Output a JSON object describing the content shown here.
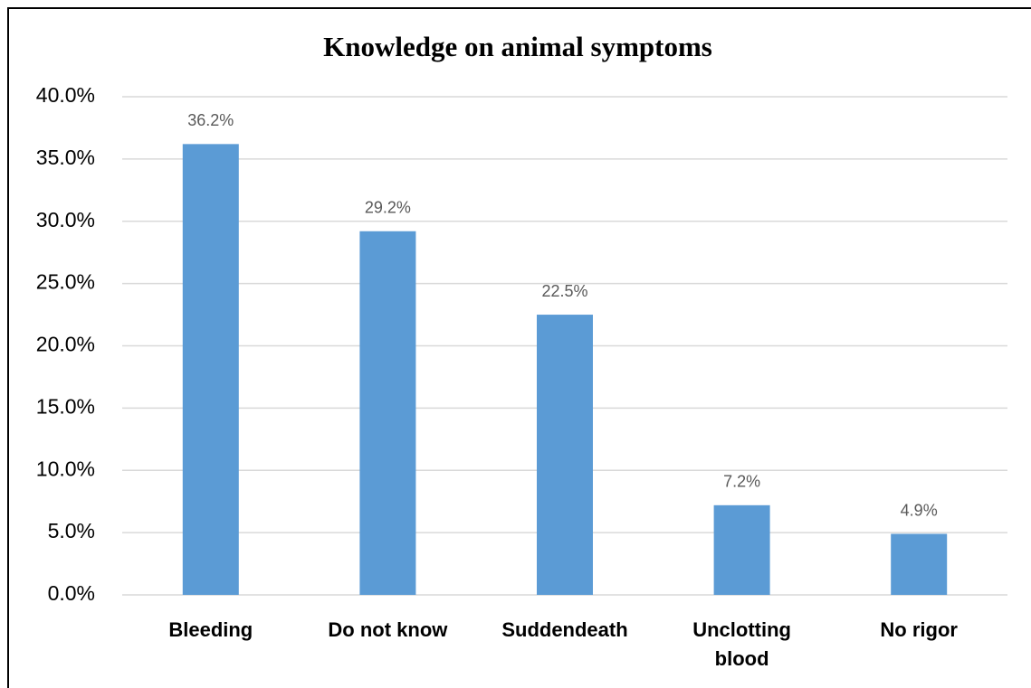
{
  "chart_data": {
    "type": "bar",
    "title": "Knowledge on animal symptoms",
    "categories": [
      "Bleeding",
      "Do not know",
      "Suddendeath",
      "Unclotting blood",
      "No rigor"
    ],
    "values": [
      36.2,
      29.2,
      22.5,
      7.2,
      4.9
    ],
    "value_labels": [
      "36.2%",
      "29.2%",
      "22.5%",
      "7.2%",
      "4.9%"
    ],
    "color": "#5b9bd5",
    "ylim": [
      0,
      40
    ],
    "yticks": [
      {
        "value": 0,
        "label": "0.0%"
      },
      {
        "value": 5,
        "label": "5.0%"
      },
      {
        "value": 10,
        "label": "10.0%"
      },
      {
        "value": 15,
        "label": "15.0%"
      },
      {
        "value": 20,
        "label": "20.0%"
      },
      {
        "value": 25,
        "label": "25.0%"
      },
      {
        "value": 30,
        "label": "30.0%"
      },
      {
        "value": 35,
        "label": "35.0%"
      },
      {
        "value": 40,
        "label": "40.0%"
      }
    ],
    "grid": true
  }
}
